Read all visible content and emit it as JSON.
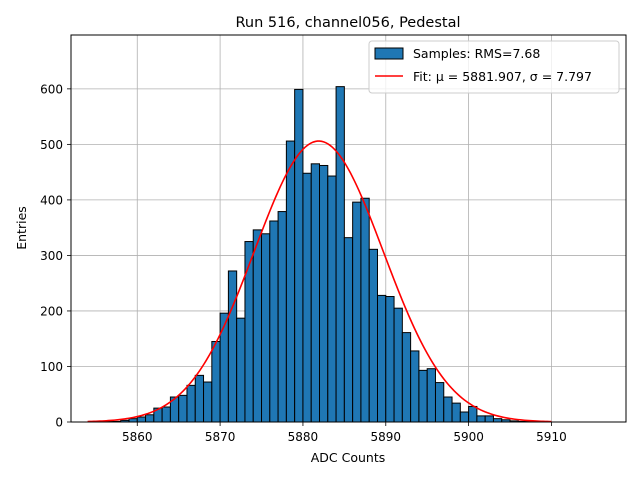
{
  "chart_data": {
    "type": "bar",
    "title": "Run 516, channel056, Pedestal",
    "xlabel": "ADC Counts",
    "ylabel": "Entries",
    "xlim": [
      5852,
      5919
    ],
    "ylim": [
      0,
      697
    ],
    "xticks": [
      5860,
      5870,
      5880,
      5890,
      5900,
      5910
    ],
    "yticks": [
      0,
      100,
      200,
      300,
      400,
      500,
      600
    ],
    "grid": true,
    "legend_position": "top-right",
    "bar_color": "#1f77b4",
    "fit_color": "#ff0000",
    "series": [
      {
        "name": "Samples: RMS=7.68",
        "type": "histogram",
        "bin_width": 1,
        "bins": [
          5856,
          5857,
          5858,
          5859,
          5860,
          5861,
          5862,
          5863,
          5864,
          5865,
          5866,
          5867,
          5868,
          5869,
          5870,
          5871,
          5872,
          5873,
          5874,
          5875,
          5876,
          5877,
          5878,
          5879,
          5880,
          5881,
          5882,
          5883,
          5884,
          5885,
          5886,
          5887,
          5888,
          5889,
          5890,
          5891,
          5892,
          5893,
          5894,
          5895,
          5896,
          5897,
          5898,
          5899,
          5900,
          5901,
          5902,
          5903,
          5904,
          5905,
          5906,
          5907
        ],
        "values": [
          1,
          1,
          3,
          6,
          9,
          13,
          25,
          27,
          45,
          48,
          66,
          84,
          72,
          145,
          196,
          272,
          187,
          325,
          346,
          339,
          362,
          379,
          506,
          599,
          448,
          465,
          462,
          443,
          604,
          332,
          396,
          403,
          311,
          228,
          226,
          205,
          161,
          128,
          93,
          96,
          71,
          45,
          34,
          18,
          28,
          11,
          11,
          6,
          4,
          2,
          1,
          1
        ]
      },
      {
        "name": "Fit: μ = 5881.907, σ = 7.797",
        "type": "gaussian",
        "mu": 5881.907,
        "sigma": 7.797,
        "amplitude": 506,
        "x_range": [
          5854,
          5910
        ]
      }
    ]
  }
}
